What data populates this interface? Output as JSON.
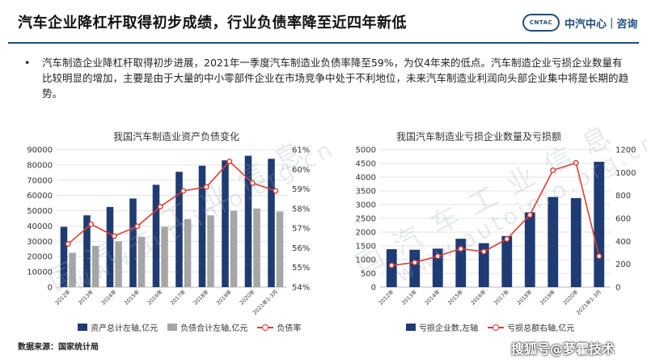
{
  "header": {
    "title": "汽车企业降杠杆取得初步成绩，行业负债率降至近四年新低",
    "logo_box": "CNTAC",
    "logo_name": "中汽中心",
    "logo_sep": "|",
    "logo_sub": "咨询"
  },
  "bullet": {
    "dot": "•",
    "text": "汽车制造企业降杠杆取得初步进展，2021年一季度汽车制造业负债率降至59%，为仅4年来的低点。汽车制造企业亏损企业数量有比较明显的增加，主要是由于大量的中小零部件企业在市场竞争中处于不利地位，未来汽车制造业利润向头部企业集中将是长期的趋势。"
  },
  "watermarks": [
    "国 汽 车 工 业 信 息",
    "www.autoinfo.org.cn"
  ],
  "footer": {
    "source": "数据来源：国家统计局",
    "credit": "搜狐号@萝霍技术"
  },
  "chart_data": [
    {
      "type": "bar",
      "title": "我国汽车制造业资产负债变化",
      "categories": [
        "2012年",
        "2013年",
        "2014年",
        "2015年",
        "2016年",
        "2017年",
        "2018年",
        "2019年",
        "2020年",
        "2021年1-3月"
      ],
      "y_ticks": [
        "90000",
        "80000",
        "70000",
        "60000",
        "50000",
        "40000",
        "30000",
        "20000",
        "10000",
        "0"
      ],
      "y2_ticks": [
        "61%",
        "60%",
        "59%",
        "58%",
        "57%",
        "56%",
        "55%",
        "54%"
      ],
      "ylim": [
        0,
        90000
      ],
      "y2lim": [
        54,
        61
      ],
      "series": [
        {
          "name": "资产总计左轴,亿元",
          "kind": "bar",
          "color": "#1f3b73",
          "values": [
            39500,
            47000,
            52500,
            58000,
            67000,
            75500,
            79500,
            83000,
            86000,
            84000
          ]
        },
        {
          "name": "负债合计左轴,亿元",
          "kind": "bar",
          "color": "#a6a6a6",
          "values": [
            22500,
            27000,
            30000,
            33000,
            39500,
            44500,
            47000,
            50000,
            51500,
            49500
          ]
        },
        {
          "name": "负债率",
          "kind": "line",
          "axis": "right",
          "color": "#e03c31",
          "values": [
            56.2,
            57.2,
            56.6,
            57.1,
            58.1,
            58.9,
            59.1,
            60.4,
            59.3,
            58.9
          ]
        }
      ]
    },
    {
      "type": "bar",
      "title": "我国汽车制造业亏损企业数量及亏损额",
      "categories": [
        "2012年",
        "2013年",
        "2014年",
        "2015年",
        "2016年",
        "2017年",
        "2018年",
        "2019年",
        "2020年",
        "2021年1-3月"
      ],
      "y_ticks": [
        "5000",
        "4500",
        "4000",
        "3500",
        "3000",
        "2500",
        "2000",
        "1500",
        "1000",
        "500",
        "0"
      ],
      "y2_ticks": [
        "1200",
        "1000",
        "800",
        "600",
        "400",
        "200",
        "0"
      ],
      "ylim": [
        0,
        5000
      ],
      "y2lim": [
        0,
        1200
      ],
      "series": [
        {
          "name": "亏损企业数,左轴",
          "kind": "bar",
          "color": "#1f3b73",
          "values": [
            1380,
            1360,
            1400,
            1760,
            1600,
            1860,
            2720,
            3280,
            3240,
            4560
          ]
        },
        {
          "name": "亏损总额右轴,亿元",
          "kind": "line",
          "axis": "right",
          "color": "#e03c31",
          "values": [
            190,
            215,
            270,
            335,
            310,
            420,
            630,
            1020,
            1085,
            270
          ]
        }
      ]
    }
  ]
}
